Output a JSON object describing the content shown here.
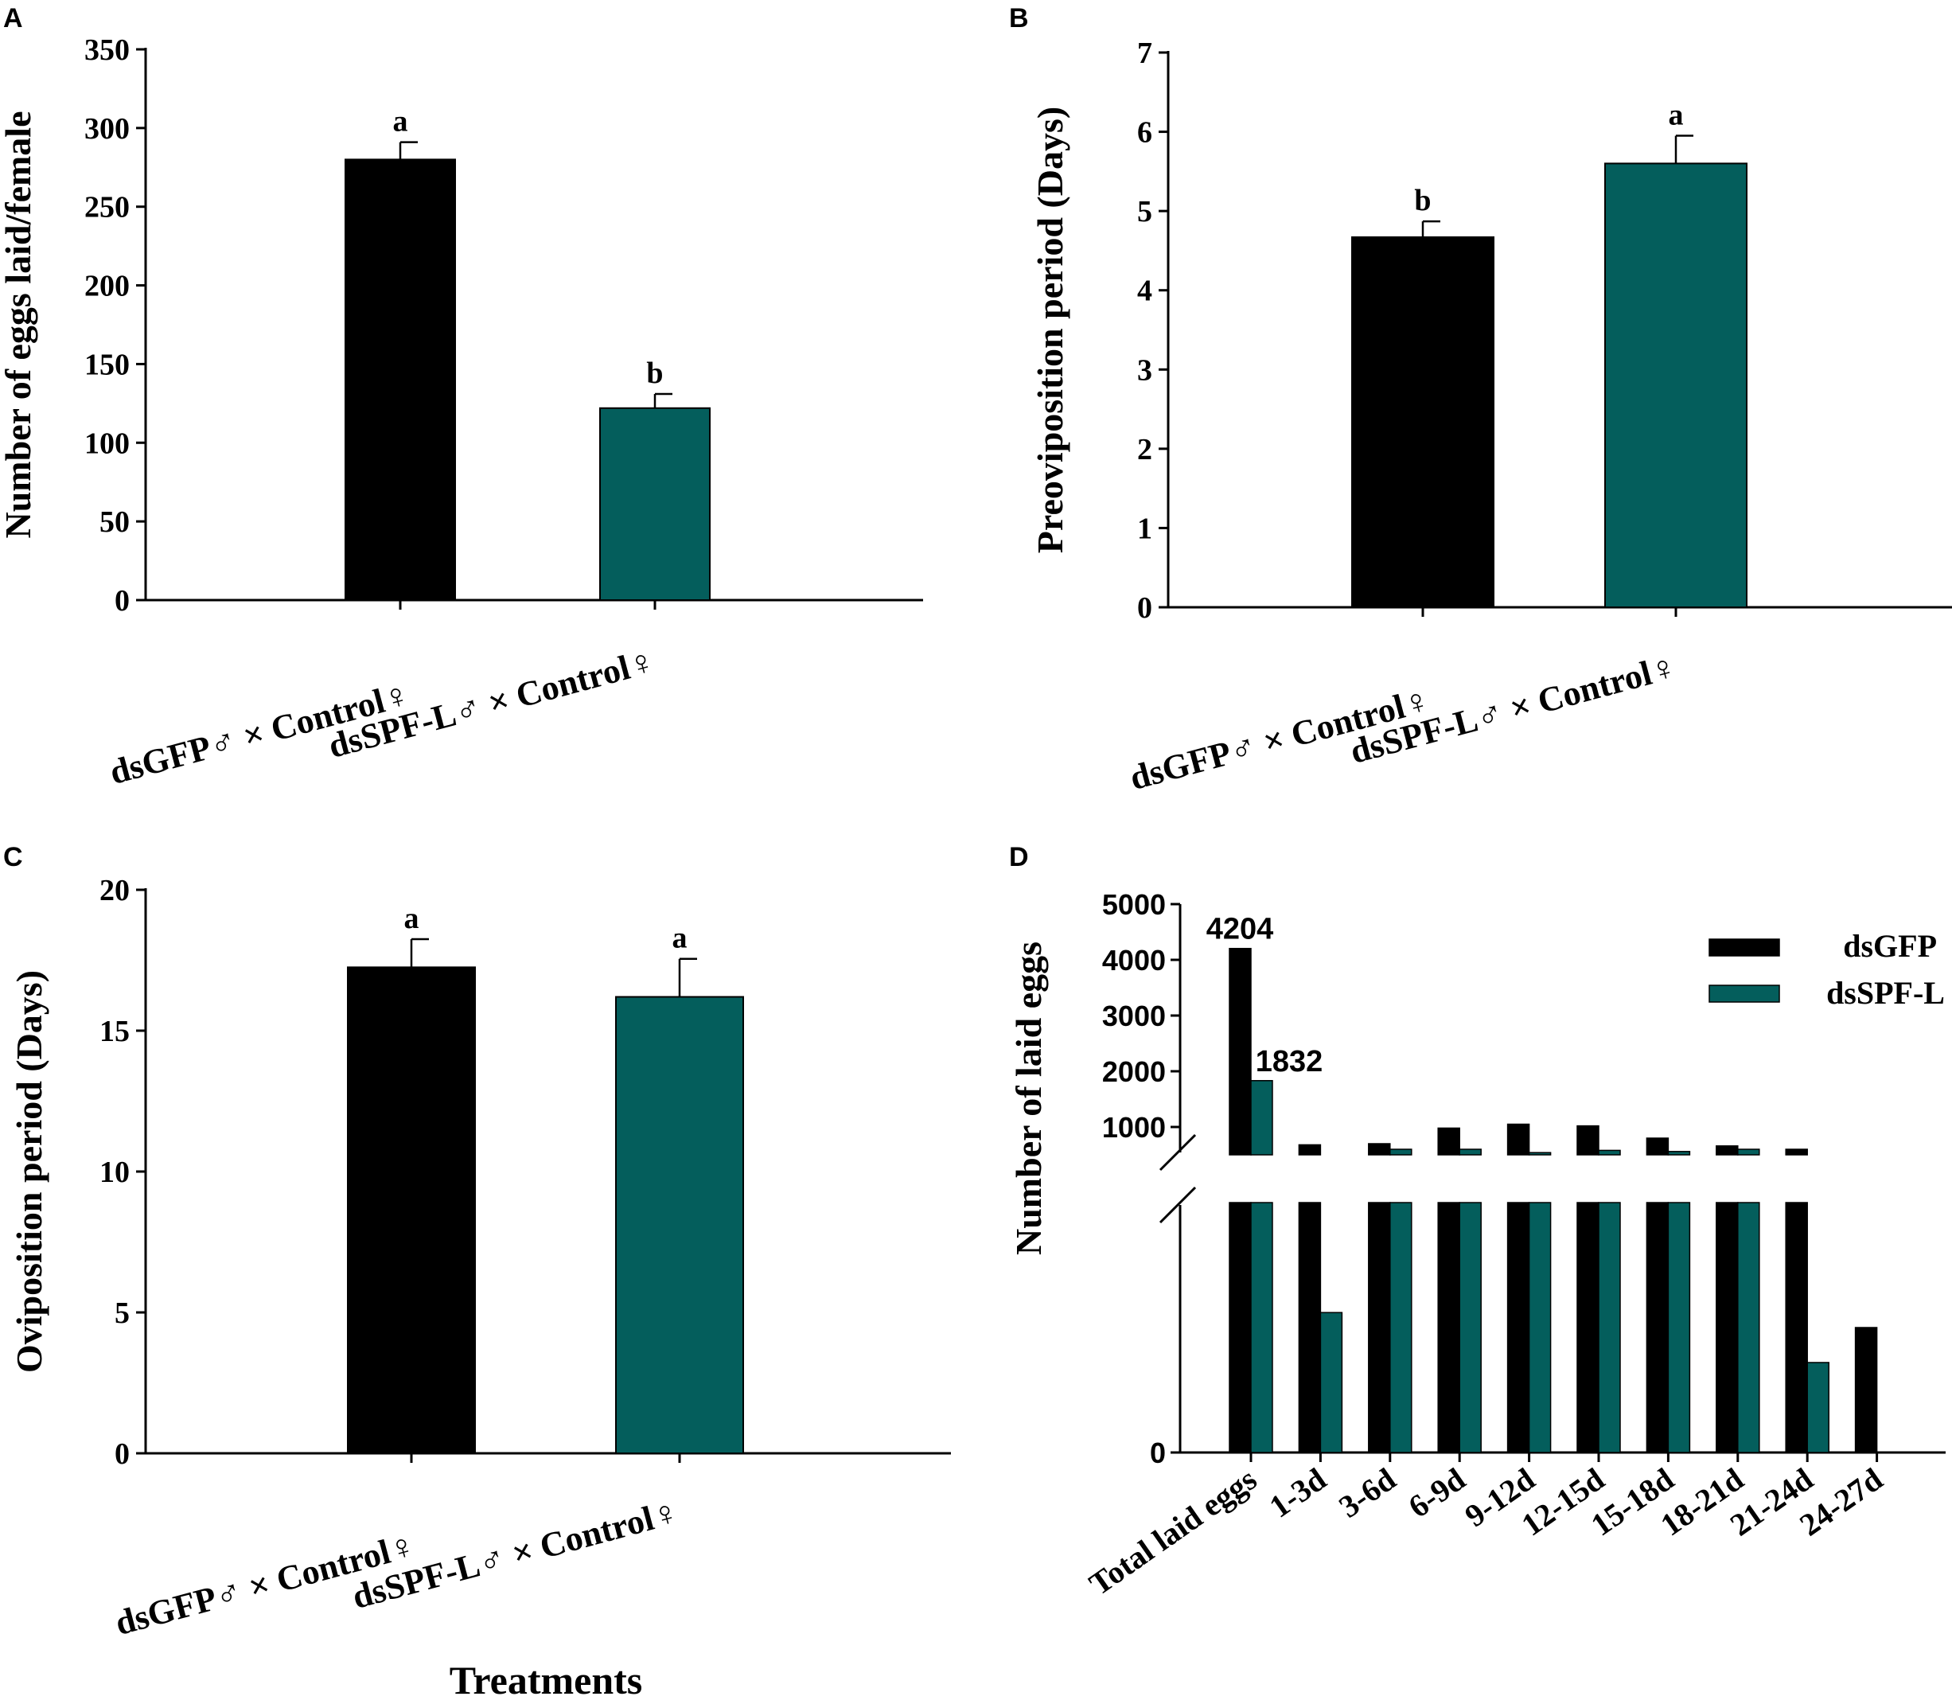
{
  "colors": {
    "dsGFP": "#000000",
    "dsSPF": "#045e5c",
    "axis": "#000000"
  },
  "xlabel_common": "Treatments",
  "chart_data": [
    {
      "panel": "A",
      "type": "bar",
      "ylabel": "Number of eggs laid/female",
      "ylim": [
        0,
        350
      ],
      "yticks": [
        0,
        50,
        100,
        150,
        200,
        250,
        300,
        350
      ],
      "categories": [
        "dsGFP♂ × Control♀",
        "dsSPF-L♂ × Control♀"
      ],
      "values": [
        280,
        122
      ],
      "errors": [
        11,
        9
      ],
      "letters": [
        "a",
        "b"
      ]
    },
    {
      "panel": "B",
      "type": "bar",
      "ylabel": "Preoviposition period (Days)",
      "ylim": [
        0,
        7
      ],
      "yticks": [
        0,
        1,
        2,
        3,
        4,
        5,
        6,
        7
      ],
      "categories": [
        "dsGFP♂ × Control♀",
        "dsSPF-L♂ × Control♀"
      ],
      "values": [
        4.67,
        5.6
      ],
      "errors": [
        0.2,
        0.35
      ],
      "letters": [
        "b",
        "a"
      ]
    },
    {
      "panel": "C",
      "type": "bar",
      "ylabel": "Oviposition period (Days)",
      "ylim": [
        0,
        20
      ],
      "yticks": [
        0,
        5,
        10,
        15,
        20
      ],
      "categories": [
        "dsGFP♂ × Control♀",
        "dsSPF-L♂ × Control♀"
      ],
      "values": [
        17.25,
        16.2
      ],
      "errors": [
        1.0,
        1.35
      ],
      "letters": [
        "a",
        "a"
      ]
    },
    {
      "panel": "D",
      "type": "bar",
      "ylabel": "Number of laid eggs",
      "yticks_upper": [
        1000,
        2000,
        3000,
        4000,
        5000
      ],
      "ytick_lower": [
        0
      ],
      "upper_range": [
        500,
        5000
      ],
      "lower_range": [
        0,
        500
      ],
      "categories": [
        "Total laid eggs",
        "1-3d",
        "3-6d",
        "6-9d",
        "9-12d",
        "12-15d",
        "15-18d",
        "18-21d",
        "21-24d",
        "24-27d"
      ],
      "series": [
        {
          "name": "dsGFP",
          "values": [
            4204,
            680,
            700,
            980,
            1050,
            1020,
            800,
            660,
            600,
            250
          ]
        },
        {
          "name": "dsSPF-L",
          "values": [
            1832,
            280,
            600,
            600,
            540,
            580,
            560,
            600,
            180,
            0
          ]
        }
      ],
      "value_labels": [
        "4204",
        "1832"
      ]
    }
  ]
}
